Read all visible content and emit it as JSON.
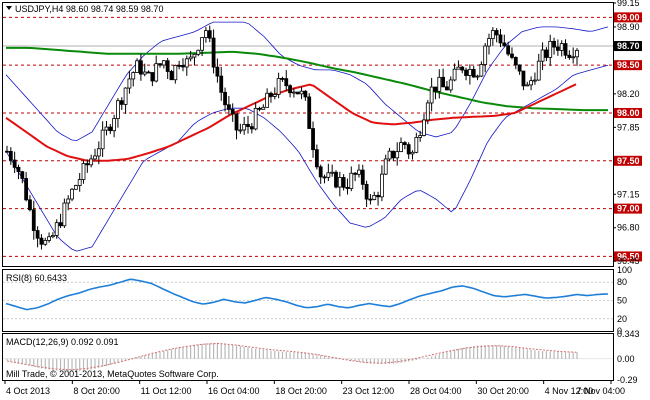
{
  "header": {
    "symbol_line": "USDJPY,H4  98.60 98.74 98.59 98.70"
  },
  "footer": {
    "copyright": "Mill Trade, © 2001-2013, MetaQuotes Software Corp."
  },
  "colors": {
    "frame": "#000000",
    "candle": "#000000",
    "bollinger": "#1515c8",
    "ma_slow": "#0a8a0a",
    "ma_fast": "#e01010",
    "level_line": "#c00000",
    "price_tag_bg": "#c00000",
    "current_tag_bg": "#000000",
    "rsi": "#1e7fd8",
    "macd": "#d07070"
  },
  "chart_data": [
    {
      "type": "candlestick",
      "symbol": "USDJPY",
      "timeframe": "H4",
      "ohlc_current": {
        "open": 98.6,
        "high": 98.74,
        "low": 98.59,
        "close": 98.7
      },
      "ylim": [
        96.4,
        99.15
      ],
      "y_ticks": [
        "99.15",
        "98.90",
        "98.20",
        "97.85",
        "97.15",
        "96.80",
        "96.45"
      ],
      "x_ticks": [
        "4 Oct 2013",
        "8 Oct 20:00",
        "11 Oct 12:00",
        "16 Oct 04:00",
        "18 Oct 20:00",
        "23 Oct 12:00",
        "28 Oct 04:00",
        "30 Oct 20:00",
        "4 Nov 12:00",
        "7 Nov 04:00"
      ],
      "price_levels": [
        {
          "value": 99.0,
          "label": "99.00"
        },
        {
          "value": 98.5,
          "label": "98.50"
        },
        {
          "value": 98.0,
          "label": "98.00"
        },
        {
          "value": 97.5,
          "label": "97.50"
        },
        {
          "value": 97.0,
          "label": "97.00"
        },
        {
          "value": 96.5,
          "label": "96.50"
        }
      ],
      "current_price": {
        "value": 98.7,
        "label": "98.70"
      },
      "close_path": [
        97.6,
        97.5,
        97.25,
        96.9,
        96.7,
        96.6,
        96.8,
        97.0,
        97.2,
        97.35,
        97.5,
        97.65,
        97.8,
        98.0,
        98.2,
        98.4,
        98.5,
        98.35,
        98.45,
        98.55,
        98.4,
        98.6,
        98.5,
        98.7,
        98.9,
        98.55,
        98.2,
        97.95,
        97.8,
        97.85,
        97.95,
        98.05,
        98.2,
        98.3,
        98.3,
        98.25,
        98.15,
        97.7,
        97.35,
        97.3,
        97.3,
        97.25,
        97.35,
        97.3,
        97.05,
        97.2,
        97.5,
        97.6,
        97.7,
        97.55,
        97.85,
        98.2,
        98.3,
        98.25,
        98.35,
        98.5,
        98.45,
        98.45,
        98.75,
        98.85,
        98.75,
        98.55,
        98.4,
        98.25,
        98.45,
        98.6,
        98.7,
        98.72,
        98.65,
        98.7
      ],
      "ma_fast": [
        97.95,
        97.8,
        97.65,
        97.55,
        97.5,
        97.5,
        97.52,
        97.58,
        97.65,
        97.75,
        97.85,
        97.98,
        98.08,
        98.18,
        98.25,
        98.3,
        98.15,
        98.0,
        97.9,
        97.88,
        97.9,
        97.93,
        97.95,
        97.96,
        97.97,
        98.0,
        98.1,
        98.2,
        98.3
      ],
      "ma_slow": [
        98.68,
        98.68,
        98.66,
        98.64,
        98.62,
        98.62,
        98.62,
        98.62,
        98.63,
        98.64,
        98.62,
        98.58,
        98.53,
        98.47,
        98.42,
        98.36,
        98.3,
        98.23,
        98.17,
        98.11,
        98.07,
        98.05,
        98.04,
        98.03,
        98.03
      ],
      "bb_upper": [
        98.4,
        98.2,
        98.0,
        97.8,
        97.7,
        97.8,
        98.1,
        98.4,
        98.6,
        98.75,
        98.8,
        98.85,
        98.95,
        98.95,
        98.95,
        98.8,
        98.6,
        98.5,
        98.45,
        98.45,
        98.4,
        98.3,
        98.1,
        97.95,
        97.8,
        97.75,
        97.8,
        98.1,
        98.45,
        98.7,
        98.85,
        98.9,
        98.9,
        98.88,
        98.85,
        98.9
      ],
      "bb_lower": [
        97.6,
        97.3,
        97.0,
        96.7,
        96.55,
        96.6,
        96.9,
        97.2,
        97.5,
        97.6,
        97.7,
        97.9,
        98.0,
        98.05,
        98.05,
        97.95,
        97.8,
        97.6,
        97.3,
        97.05,
        96.85,
        96.8,
        96.9,
        97.1,
        97.2,
        97.1,
        96.95,
        97.3,
        97.7,
        97.95,
        98.05,
        98.15,
        98.25,
        98.4,
        98.45,
        98.5
      ]
    },
    {
      "type": "line",
      "title": "RSI(8) 60.6433",
      "ylim": [
        0,
        100
      ],
      "y_ticks": [
        "100",
        "80",
        "50",
        "20",
        "0"
      ],
      "levels": [
        80,
        50,
        20
      ],
      "values": [
        45,
        40,
        35,
        38,
        44,
        52,
        58,
        62,
        68,
        72,
        75,
        80,
        85,
        82,
        78,
        70,
        62,
        55,
        48,
        44,
        47,
        52,
        48,
        46,
        50,
        55,
        52,
        48,
        42,
        38,
        40,
        44,
        40,
        38,
        42,
        45,
        42,
        40,
        45,
        52,
        58,
        62,
        66,
        72,
        74,
        70,
        64,
        58,
        56,
        58,
        60,
        57,
        54,
        55,
        57,
        60,
        58,
        60,
        60.64
      ]
    },
    {
      "type": "histogram",
      "title": "MACD(12,26,9) 0.092 0.091",
      "ylim": [
        -0.29,
        0.34
      ],
      "y_ticks": [
        "0.343",
        "0.00",
        "-0.29"
      ],
      "values": [
        -0.02,
        -0.06,
        -0.1,
        -0.14,
        -0.16,
        -0.18,
        -0.17,
        -0.14,
        -0.1,
        -0.05,
        0.0,
        0.04,
        0.08,
        0.12,
        0.16,
        0.19,
        0.21,
        0.22,
        0.2,
        0.17,
        0.14,
        0.12,
        0.1,
        0.09,
        0.08,
        0.06,
        0.03,
        0.0,
        -0.03,
        -0.06,
        -0.07,
        -0.07,
        -0.05,
        -0.02,
        0.02,
        0.07,
        0.12,
        0.16,
        0.18,
        0.19,
        0.18,
        0.16,
        0.13,
        0.11,
        0.1,
        0.09,
        0.09
      ],
      "signal": [
        -0.03,
        -0.07,
        -0.11,
        -0.14,
        -0.15,
        -0.13,
        -0.09,
        -0.04,
        0.02,
        0.08,
        0.13,
        0.17,
        0.2,
        0.21,
        0.19,
        0.16,
        0.13,
        0.11,
        0.09,
        0.06,
        0.02,
        -0.02,
        -0.05,
        -0.06,
        -0.04,
        0.0,
        0.05,
        0.1,
        0.14,
        0.17,
        0.18,
        0.17,
        0.14,
        0.12,
        0.1,
        0.09
      ]
    }
  ]
}
